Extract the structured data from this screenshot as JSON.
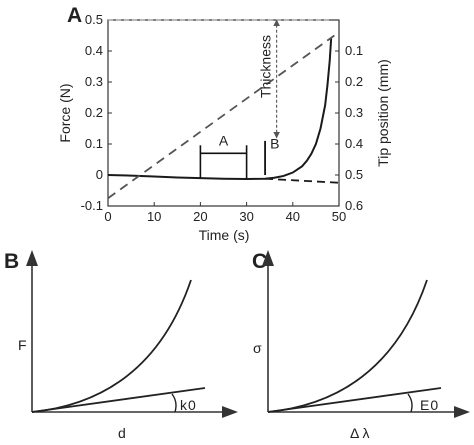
{
  "panels": {
    "a": {
      "letter": "A"
    },
    "b": {
      "letter": "B"
    },
    "c": {
      "letter": "C"
    }
  },
  "chart_data": [
    {
      "type": "line",
      "panel": "A",
      "xlabel": "Time (s)",
      "ylabel": "Force (N)",
      "y2label": "Tip position (mm)",
      "xlim": [
        0,
        50
      ],
      "ylim": [
        -0.1,
        0.5
      ],
      "y2lim": [
        0.6,
        0.0
      ],
      "y2_inverted": true,
      "x_ticks": [
        0,
        10,
        20,
        30,
        40,
        50
      ],
      "y_ticks": [
        -0.1,
        0,
        0.1,
        0.2,
        0.3,
        0.4,
        0.5
      ],
      "y2_ticks": [
        0.1,
        0.2,
        0.3,
        0.4,
        0.5,
        0.6
      ],
      "grid": false,
      "series": [
        {
          "axis": "left",
          "style": "solid",
          "color": "#1a1a1a",
          "x": [
            0,
            5,
            10,
            15,
            20,
            25,
            30,
            34,
            36,
            38,
            40,
            42,
            43,
            44,
            45,
            46,
            47,
            47.5,
            48,
            48.3
          ],
          "y": [
            0.0,
            -0.002,
            -0.005,
            -0.008,
            -0.01,
            -0.012,
            -0.013,
            -0.012,
            -0.009,
            -0.003,
            0.008,
            0.028,
            0.045,
            0.068,
            0.1,
            0.15,
            0.225,
            0.29,
            0.37,
            0.44
          ]
        },
        {
          "axis": "left",
          "style": "dashed",
          "color": "#1a1a1a",
          "x": [
            34,
            50
          ],
          "y": [
            -0.012,
            -0.025
          ]
        },
        {
          "axis": "right",
          "style": "dashed",
          "color": "#555555",
          "x": [
            0,
            49
          ],
          "y": [
            0.575,
            0.05
          ]
        }
      ],
      "annotations": [
        {
          "text": "A",
          "kind": "interval",
          "x": [
            20,
            30
          ],
          "y": 0.07
        },
        {
          "text": "B",
          "kind": "marker",
          "x": 34,
          "y": [
            0.0,
            0.11
          ]
        },
        {
          "text": "Thickness",
          "kind": "vertical-arrow",
          "x": 36.5,
          "y": [
            0.12,
            0.5
          ]
        },
        {
          "kind": "horizontal-guide",
          "y": 0.5,
          "x": [
            0,
            48
          ]
        }
      ]
    },
    {
      "type": "line",
      "panel": "B",
      "xlabel": "d",
      "ylabel": "F",
      "angle_label": "k",
      "angle_subscript": "0",
      "series": [
        {
          "style": "solid",
          "kind": "power-curve"
        },
        {
          "style": "solid",
          "kind": "initial-slope"
        }
      ]
    },
    {
      "type": "line",
      "panel": "C",
      "xlabel": "Δ λ",
      "ylabel": "σ",
      "angle_label": "E",
      "angle_subscript": "0",
      "series": [
        {
          "style": "solid",
          "kind": "power-curve"
        },
        {
          "style": "solid",
          "kind": "initial-slope"
        }
      ]
    }
  ]
}
